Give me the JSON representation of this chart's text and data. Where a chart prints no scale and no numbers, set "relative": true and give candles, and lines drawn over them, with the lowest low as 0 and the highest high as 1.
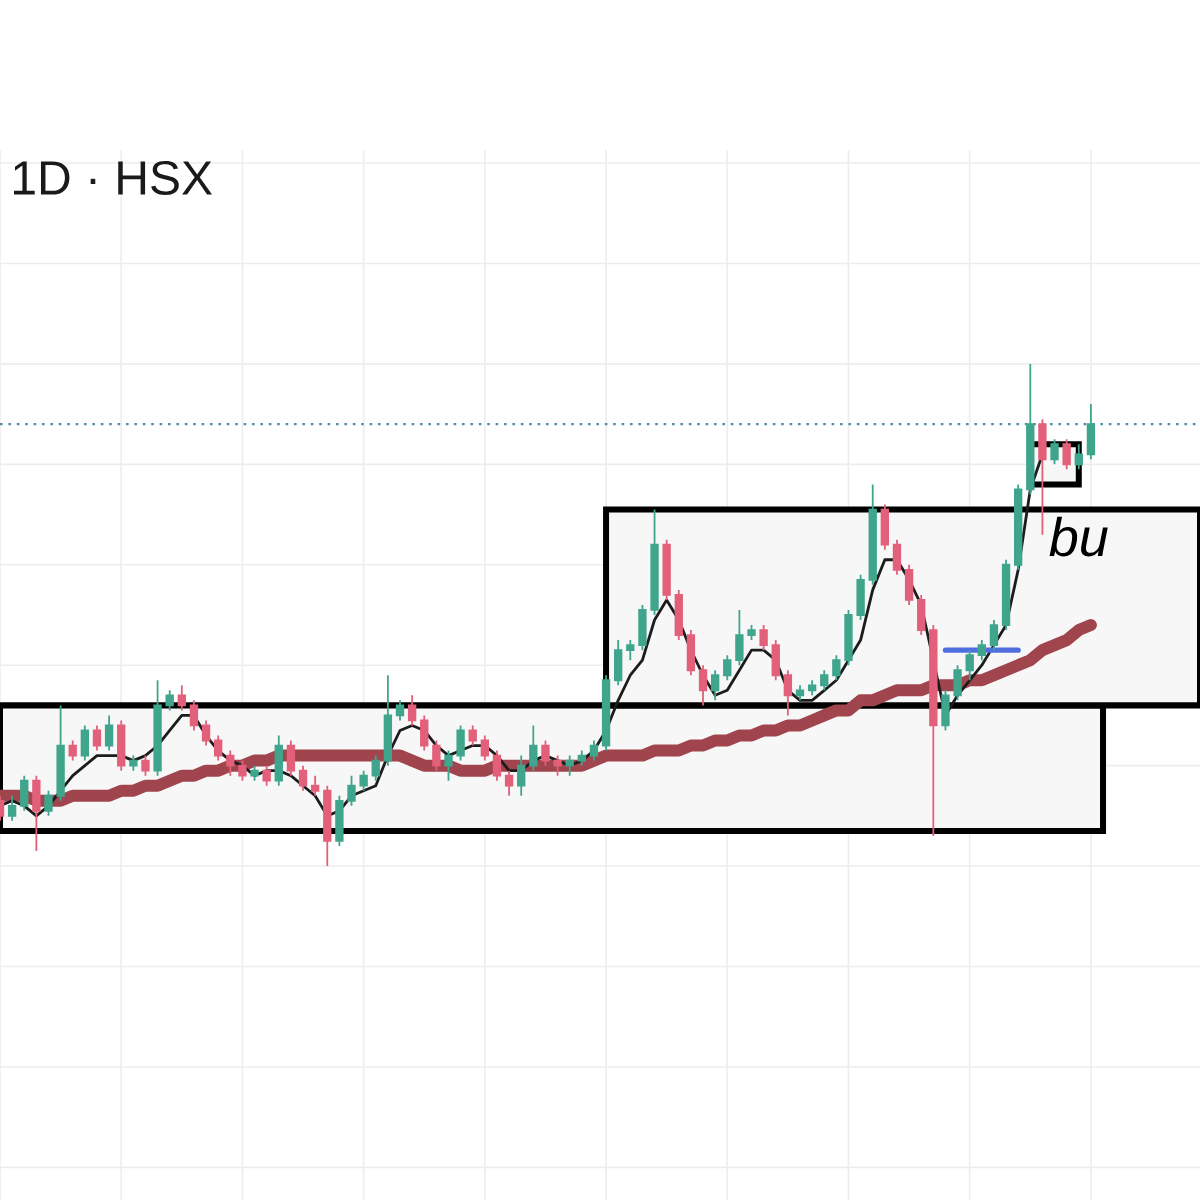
{
  "chart_data": {
    "type": "candlestick",
    "title": "1D · HSX",
    "relative": true,
    "categories": [
      null,
      null,
      null,
      null,
      null,
      null,
      null,
      null,
      null,
      null,
      null,
      null,
      null,
      null,
      null,
      null,
      null,
      null,
      null,
      null,
      null,
      null,
      null,
      null,
      null,
      null,
      null,
      null,
      null,
      null,
      null,
      null,
      null,
      null,
      null,
      null,
      null,
      null,
      null,
      null,
      null,
      null,
      null,
      null,
      null,
      null,
      null,
      null,
      null,
      null,
      null,
      null,
      null,
      null,
      null,
      null,
      null,
      null,
      null,
      null,
      null,
      null,
      null,
      null,
      null,
      null,
      null,
      null,
      null,
      null,
      null,
      null,
      null,
      null,
      null,
      null,
      null,
      null,
      null,
      null,
      null,
      null,
      null,
      null,
      null,
      null,
      null,
      null,
      null,
      null,
      null,
      null,
      null,
      null,
      null,
      null,
      null,
      null,
      null,
      null
    ],
    "ohlc": [
      [
        0.13,
        0.14,
        0.09,
        0.1
      ],
      [
        0.1,
        0.14,
        0.09,
        0.12
      ],
      [
        0.12,
        0.18,
        0.11,
        0.17
      ],
      [
        0.17,
        0.18,
        0.03,
        0.11
      ],
      [
        0.11,
        0.15,
        0.1,
        0.14
      ],
      [
        0.14,
        0.32,
        0.13,
        0.24
      ],
      [
        0.24,
        0.25,
        0.21,
        0.22
      ],
      [
        0.22,
        0.28,
        0.21,
        0.27
      ],
      [
        0.27,
        0.28,
        0.23,
        0.24
      ],
      [
        0.24,
        0.3,
        0.23,
        0.28
      ],
      [
        0.28,
        0.29,
        0.19,
        0.2
      ],
      [
        0.2,
        0.22,
        0.19,
        0.21
      ],
      [
        0.21,
        0.22,
        0.18,
        0.19
      ],
      [
        0.19,
        0.37,
        0.18,
        0.32
      ],
      [
        0.32,
        0.35,
        0.31,
        0.34
      ],
      [
        0.34,
        0.36,
        0.31,
        0.32
      ],
      [
        0.32,
        0.33,
        0.27,
        0.28
      ],
      [
        0.28,
        0.29,
        0.24,
        0.25
      ],
      [
        0.25,
        0.26,
        0.21,
        0.22
      ],
      [
        0.22,
        0.23,
        0.18,
        0.2
      ],
      [
        0.2,
        0.21,
        0.17,
        0.18
      ],
      [
        0.18,
        0.2,
        0.17,
        0.19
      ],
      [
        0.19,
        0.2,
        0.16,
        0.17
      ],
      [
        0.17,
        0.26,
        0.16,
        0.24
      ],
      [
        0.24,
        0.25,
        0.18,
        0.19
      ],
      [
        0.19,
        0.2,
        0.15,
        0.16
      ],
      [
        0.16,
        0.18,
        0.14,
        0.15
      ],
      [
        0.15,
        0.16,
        0.0,
        0.05
      ],
      [
        0.05,
        0.14,
        0.04,
        0.13
      ],
      [
        0.13,
        0.18,
        0.12,
        0.16
      ],
      [
        0.16,
        0.19,
        0.15,
        0.18
      ],
      [
        0.18,
        0.22,
        0.17,
        0.21
      ],
      [
        0.21,
        0.38,
        0.2,
        0.3
      ],
      [
        0.3,
        0.33,
        0.29,
        0.32
      ],
      [
        0.32,
        0.34,
        0.28,
        0.29
      ],
      [
        0.29,
        0.3,
        0.23,
        0.24
      ],
      [
        0.24,
        0.25,
        0.19,
        0.2
      ],
      [
        0.2,
        0.23,
        0.17,
        0.22
      ],
      [
        0.22,
        0.28,
        0.21,
        0.27
      ],
      [
        0.27,
        0.28,
        0.24,
        0.25
      ],
      [
        0.25,
        0.26,
        0.21,
        0.22
      ],
      [
        0.22,
        0.23,
        0.17,
        0.18
      ],
      [
        0.18,
        0.19,
        0.14,
        0.16
      ],
      [
        0.16,
        0.22,
        0.14,
        0.2
      ],
      [
        0.2,
        0.28,
        0.19,
        0.24
      ],
      [
        0.24,
        0.25,
        0.2,
        0.21
      ],
      [
        0.21,
        0.22,
        0.18,
        0.2
      ],
      [
        0.2,
        0.22,
        0.18,
        0.21
      ],
      [
        0.21,
        0.23,
        0.2,
        0.22
      ],
      [
        0.22,
        0.25,
        0.21,
        0.24
      ],
      [
        0.24,
        0.38,
        0.23,
        0.37
      ],
      [
        0.37,
        0.45,
        0.36,
        0.43
      ],
      [
        0.43,
        0.45,
        0.41,
        0.44
      ],
      [
        0.44,
        0.52,
        0.43,
        0.51
      ],
      [
        0.51,
        0.71,
        0.5,
        0.64
      ],
      [
        0.64,
        0.65,
        0.53,
        0.54
      ],
      [
        0.54,
        0.55,
        0.45,
        0.46
      ],
      [
        0.46,
        0.47,
        0.38,
        0.39
      ],
      [
        0.39,
        0.4,
        0.32,
        0.35
      ],
      [
        0.35,
        0.39,
        0.33,
        0.38
      ],
      [
        0.38,
        0.42,
        0.37,
        0.41
      ],
      [
        0.41,
        0.51,
        0.4,
        0.46
      ],
      [
        0.46,
        0.48,
        0.45,
        0.47
      ],
      [
        0.47,
        0.48,
        0.43,
        0.44
      ],
      [
        0.44,
        0.45,
        0.37,
        0.38
      ],
      [
        0.38,
        0.39,
        0.3,
        0.34
      ],
      [
        0.34,
        0.36,
        0.33,
        0.35
      ],
      [
        0.35,
        0.37,
        0.34,
        0.36
      ],
      [
        0.36,
        0.39,
        0.35,
        0.38
      ],
      [
        0.38,
        0.42,
        0.37,
        0.41
      ],
      [
        0.41,
        0.51,
        0.4,
        0.5
      ],
      [
        0.5,
        0.58,
        0.49,
        0.57
      ],
      [
        0.57,
        0.76,
        0.56,
        0.71
      ],
      [
        0.71,
        0.72,
        0.63,
        0.64
      ],
      [
        0.64,
        0.65,
        0.58,
        0.59
      ],
      [
        0.59,
        0.6,
        0.52,
        0.53
      ],
      [
        0.53,
        0.54,
        0.46,
        0.47
      ],
      [
        0.47,
        0.48,
        0.06,
        0.28
      ],
      [
        0.28,
        0.35,
        0.27,
        0.34
      ],
      [
        0.34,
        0.4,
        0.33,
        0.39
      ],
      [
        0.39,
        0.43,
        0.37,
        0.42
      ],
      [
        0.42,
        0.45,
        0.41,
        0.44
      ],
      [
        0.44,
        0.49,
        0.43,
        0.48
      ],
      [
        0.48,
        0.61,
        0.47,
        0.6
      ],
      [
        0.6,
        0.76,
        0.59,
        0.75
      ],
      [
        0.75,
        1.0,
        0.74,
        0.88
      ],
      [
        0.88,
        0.89,
        0.66,
        0.81
      ],
      [
        0.81,
        0.85,
        0.8,
        0.84
      ],
      [
        0.84,
        0.85,
        0.79,
        0.8
      ],
      [
        0.8,
        0.84,
        0.79,
        0.82
      ],
      [
        0.82,
        0.92,
        0.81,
        0.88
      ],
      null,
      null,
      null,
      null,
      null,
      null,
      null,
      null,
      null
    ],
    "colors": [
      "#e2607a",
      "#3fa58c",
      "#3fa58c",
      "#e2607a",
      "#3fa58c",
      "#3fa58c",
      "#e2607a",
      "#3fa58c",
      "#e2607a",
      "#3fa58c",
      "#e2607a",
      "#3fa58c",
      "#e2607a",
      "#3fa58c",
      "#3fa58c",
      "#e2607a",
      "#e2607a",
      "#e2607a",
      "#e2607a",
      "#e2607a",
      "#e2607a",
      "#3fa58c",
      "#e2607a",
      "#3fa58c",
      "#e2607a",
      "#e2607a",
      "#e2607a",
      "#e2607a",
      "#3fa58c",
      "#3fa58c",
      "#3fa58c",
      "#3fa58c",
      "#3fa58c",
      "#3fa58c",
      "#e2607a",
      "#e2607a",
      "#e2607a",
      "#3fa58c",
      "#3fa58c",
      "#e2607a",
      "#e2607a",
      "#e2607a",
      "#e2607a",
      "#3fa58c",
      "#3fa58c",
      "#e2607a",
      "#e2607a",
      "#3fa58c",
      "#3fa58c",
      "#3fa58c",
      "#3fa58c",
      "#3fa58c",
      "#3fa58c",
      "#3fa58c",
      "#3fa58c",
      "#e2607a",
      "#e2607a",
      "#e2607a",
      "#e2607a",
      "#3fa58c",
      "#3fa58c",
      "#3fa58c",
      "#3fa58c",
      "#e2607a",
      "#e2607a",
      "#e2607a",
      "#3fa58c",
      "#3fa58c",
      "#3fa58c",
      "#3fa58c",
      "#3fa58c",
      "#3fa58c",
      "#3fa58c",
      "#e2607a",
      "#e2607a",
      "#e2607a",
      "#e2607a",
      "#e2607a",
      "#3fa58c",
      "#3fa58c",
      "#3fa58c",
      "#3fa58c",
      "#3fa58c",
      "#3fa58c",
      "#3fa58c",
      "#3fa58c",
      "#e2607a",
      "#3fa58c",
      "#e2607a",
      "#3fa58c",
      "#3fa58c",
      null,
      null,
      null,
      null,
      null,
      null,
      null,
      null,
      null
    ],
    "series": [
      {
        "type": "line",
        "color": "#a0454d",
        "values": [
          0.14,
          0.14,
          0.14,
          0.13,
          0.13,
          0.13,
          0.14,
          0.14,
          0.14,
          0.14,
          0.15,
          0.15,
          0.16,
          0.16,
          0.17,
          0.18,
          0.18,
          0.19,
          0.19,
          0.2,
          0.2,
          0.21,
          0.21,
          0.22,
          0.22,
          0.22,
          0.22,
          0.22,
          0.22,
          0.22,
          0.22,
          0.22,
          0.22,
          0.22,
          0.21,
          0.2,
          0.2,
          0.2,
          0.19,
          0.19,
          0.19,
          0.2,
          0.2,
          0.2,
          0.2,
          0.2,
          0.2,
          0.2,
          0.2,
          0.21,
          0.22,
          0.22,
          0.22,
          0.22,
          0.23,
          0.23,
          0.23,
          0.24,
          0.24,
          0.25,
          0.25,
          0.26,
          0.26,
          0.27,
          0.27,
          0.28,
          0.28,
          0.29,
          0.3,
          0.31,
          0.31,
          0.33,
          0.33,
          0.34,
          0.35,
          0.35,
          0.35,
          0.36,
          0.36,
          0.36,
          0.37,
          0.37,
          0.38,
          0.39,
          0.4,
          0.41,
          0.43,
          0.44,
          0.45,
          0.47,
          0.48,
          null,
          null,
          null,
          null,
          null,
          null,
          null,
          null,
          null
        ]
      },
      {
        "type": "line",
        "color": "#1c1c1c",
        "values": [
          0.12,
          0.13,
          0.12,
          0.1,
          0.12,
          0.15,
          0.18,
          0.2,
          0.22,
          0.22,
          0.22,
          0.21,
          0.22,
          0.24,
          0.27,
          0.3,
          0.3,
          0.26,
          0.23,
          0.21,
          0.2,
          0.18,
          0.19,
          0.19,
          0.18,
          0.16,
          0.14,
          0.1,
          0.11,
          0.14,
          0.15,
          0.16,
          0.22,
          0.27,
          0.28,
          0.27,
          0.24,
          0.22,
          0.23,
          0.24,
          0.24,
          0.22,
          0.19,
          0.19,
          0.21,
          0.22,
          0.21,
          0.2,
          0.21,
          0.23,
          0.27,
          0.33,
          0.38,
          0.41,
          0.49,
          0.53,
          0.49,
          0.43,
          0.38,
          0.34,
          0.35,
          0.39,
          0.43,
          0.43,
          0.41,
          0.35,
          0.33,
          0.33,
          0.35,
          0.37,
          0.41,
          0.45,
          0.55,
          0.61,
          0.61,
          0.57,
          0.52,
          null,
          0.3,
          0.34,
          0.37,
          0.4,
          0.44,
          0.48,
          0.59,
          0.75,
          0.82,
          null,
          null,
          null,
          null,
          null,
          null,
          null,
          null,
          null,
          null,
          null,
          null,
          null
        ]
      },
      {
        "type": "line",
        "color": "#000000",
        "values": [
          null,
          null,
          null,
          null,
          null,
          null,
          null,
          null,
          null,
          null,
          null,
          null,
          null,
          null,
          null,
          null,
          null,
          null,
          null,
          null,
          null,
          null,
          null,
          null,
          null,
          null,
          null,
          null,
          null,
          null,
          null,
          null,
          null,
          null,
          null,
          null,
          null,
          null,
          null,
          null,
          null,
          null,
          null,
          null,
          null,
          null,
          null,
          null,
          null,
          null,
          null,
          null,
          null,
          null,
          null,
          null,
          null,
          null,
          null,
          null,
          null,
          null,
          null,
          null,
          null,
          null,
          null,
          null,
          null,
          null,
          null,
          null,
          null,
          null,
          null,
          null,
          null,
          null,
          null,
          null,
          null,
          null,
          null,
          null,
          null,
          null,
          null,
          null,
          null,
          null,
          null,
          null,
          null,
          null,
          null,
          null,
          null,
          null,
          null,
          null
        ],
        "lower": [
          0.07,
          0.07,
          0.07,
          0.07,
          0.07,
          0.07,
          0.07,
          0.07,
          0.07,
          0.07,
          0.07,
          0.07,
          0.07,
          0.07,
          0.07,
          0.07,
          0.07,
          0.07,
          0.07,
          0.07,
          0.07,
          0.07,
          0.07,
          0.07,
          0.07,
          0.07,
          0.07,
          0.07,
          0.07,
          0.07,
          0.07,
          0.07,
          0.07,
          0.07,
          0.07,
          0.07,
          0.07,
          0.07,
          0.07,
          0.07,
          0.07,
          0.07,
          0.07,
          0.07,
          0.07,
          0.07,
          0.07,
          0.07,
          0.07,
          0.07,
          0.07,
          0.07,
          0.07,
          0.07,
          0.07,
          0.07,
          0.07,
          0.07,
          0.07,
          0.07,
          0.07,
          0.07,
          0.07,
          0.07,
          0.07,
          0.07,
          0.07,
          0.07,
          0.07,
          0.07,
          0.07,
          0.07,
          0.07,
          0.07,
          0.07,
          0.07,
          0.07,
          0.07,
          0.07,
          0.07,
          0.07,
          0.07,
          0.07,
          0.07,
          0.07,
          0.07,
          0.07,
          0.07,
          0.07,
          0.07,
          0.07,
          0.07,
          null,
          null,
          null,
          null,
          null,
          null,
          null,
          null
        ],
        "upper": [
          0.32,
          0.32,
          0.32,
          0.32,
          0.32,
          0.32,
          0.32,
          0.32,
          0.32,
          0.32,
          0.32,
          0.32,
          0.32,
          0.32,
          0.32,
          0.32,
          0.32,
          0.32,
          0.32,
          0.32,
          0.32,
          0.32,
          0.32,
          0.32,
          0.32,
          0.32,
          0.32,
          0.32,
          0.32,
          0.32,
          0.32,
          0.32,
          0.32,
          0.32,
          0.32,
          0.32,
          0.32,
          0.32,
          0.32,
          0.32,
          0.32,
          0.32,
          0.32,
          0.32,
          0.32,
          0.32,
          0.32,
          0.32,
          0.32,
          0.32,
          0.32,
          0.32,
          0.32,
          0.32,
          0.32,
          0.32,
          0.32,
          0.32,
          0.32,
          0.32,
          0.32,
          0.32,
          0.32,
          0.32,
          0.32,
          0.32,
          0.32,
          0.32,
          0.32,
          0.32,
          0.32,
          0.32,
          0.32,
          0.32,
          0.32,
          0.32,
          0.32,
          0.32,
          0.32,
          0.32,
          0.32,
          0.32,
          0.32,
          0.32,
          0.32,
          0.32,
          0.32,
          0.32,
          0.32,
          0.32,
          0.32,
          0.32,
          null,
          null,
          null,
          null,
          null,
          null,
          null,
          null
        ]
      },
      {
        "type": "line",
        "color": "#000000",
        "values": [
          null,
          null,
          null,
          null,
          null,
          null,
          null,
          null,
          null,
          null,
          null,
          null,
          null,
          null,
          null,
          null,
          null,
          null,
          null,
          null,
          null,
          null,
          null,
          null,
          null,
          null,
          null,
          null,
          null,
          null,
          null,
          null,
          null,
          null,
          null,
          null,
          null,
          null,
          null,
          null,
          null,
          null,
          null,
          null,
          null,
          null,
          null,
          null,
          null,
          null,
          null,
          null,
          null,
          null,
          null,
          null,
          null,
          null,
          null,
          null,
          null,
          null,
          null,
          null,
          null,
          null,
          null,
          null,
          null,
          null,
          null,
          null,
          null,
          null,
          null,
          null,
          null,
          null,
          null,
          null,
          null,
          null,
          null,
          null,
          null,
          null,
          null,
          null,
          null,
          null,
          null,
          null,
          null,
          null,
          null,
          null,
          null,
          null,
          null,
          null
        ],
        "lower": [
          null,
          null,
          null,
          null,
          null,
          null,
          null,
          null,
          null,
          null,
          null,
          null,
          null,
          null,
          null,
          null,
          null,
          null,
          null,
          null,
          null,
          null,
          null,
          null,
          null,
          null,
          null,
          null,
          null,
          null,
          null,
          null,
          null,
          null,
          null,
          null,
          null,
          null,
          null,
          null,
          null,
          null,
          null,
          null,
          null,
          null,
          null,
          null,
          null,
          null,
          0.32,
          0.32,
          0.32,
          0.32,
          0.32,
          0.32,
          0.32,
          0.32,
          0.32,
          0.32,
          0.32,
          0.32,
          0.32,
          0.32,
          0.32,
          0.32,
          0.32,
          0.32,
          0.32,
          0.32,
          0.32,
          0.32,
          0.32,
          0.32,
          0.32,
          0.32,
          0.32,
          0.32,
          0.32,
          0.32,
          0.32,
          0.32,
          0.32,
          0.32,
          0.32,
          0.32,
          0.32,
          0.32,
          0.32,
          0.32,
          0.32,
          0.32,
          0.32,
          0.32,
          0.32,
          0.32,
          0.32,
          0.32,
          0.32,
          0.32
        ],
        "upper": [
          null,
          null,
          null,
          null,
          null,
          null,
          null,
          null,
          null,
          null,
          null,
          null,
          null,
          null,
          null,
          null,
          null,
          null,
          null,
          null,
          null,
          null,
          null,
          null,
          null,
          null,
          null,
          null,
          null,
          null,
          null,
          null,
          null,
          null,
          null,
          null,
          null,
          null,
          null,
          null,
          null,
          null,
          null,
          null,
          null,
          null,
          null,
          null,
          null,
          null,
          0.71,
          0.71,
          0.71,
          0.71,
          0.71,
          0.71,
          0.71,
          0.71,
          0.71,
          0.71,
          0.71,
          0.71,
          0.71,
          0.71,
          0.71,
          0.71,
          0.71,
          0.71,
          0.71,
          0.71,
          0.71,
          0.71,
          0.71,
          0.71,
          0.71,
          0.71,
          0.71,
          0.71,
          0.71,
          0.71,
          0.71,
          0.71,
          0.71,
          0.71,
          0.71,
          0.71,
          0.71,
          0.71,
          0.71,
          0.71,
          0.71,
          0.71,
          0.71,
          0.71,
          0.71,
          0.71,
          0.71,
          0.71,
          0.71,
          0.71
        ]
      },
      {
        "type": "line",
        "color": "#000000",
        "name": "bu",
        "values": [
          null,
          null,
          null,
          null,
          null,
          null,
          null,
          null,
          null,
          null,
          null,
          null,
          null,
          null,
          null,
          null,
          null,
          null,
          null,
          null,
          null,
          null,
          null,
          null,
          null,
          null,
          null,
          null,
          null,
          null,
          null,
          null,
          null,
          null,
          null,
          null,
          null,
          null,
          null,
          null,
          null,
          null,
          null,
          null,
          null,
          null,
          null,
          null,
          null,
          null,
          null,
          null,
          null,
          null,
          null,
          null,
          null,
          null,
          null,
          null,
          null,
          null,
          null,
          null,
          null,
          null,
          null,
          null,
          null,
          null,
          null,
          null,
          null,
          null,
          null,
          null,
          null,
          null,
          null,
          null,
          null,
          null,
          null,
          null,
          null,
          null,
          null,
          null,
          null,
          null,
          null,
          null,
          null,
          null,
          null,
          null,
          null,
          null,
          null,
          null
        ],
        "lower": [
          null,
          null,
          null,
          null,
          null,
          null,
          null,
          null,
          null,
          null,
          null,
          null,
          null,
          null,
          null,
          null,
          null,
          null,
          null,
          null,
          null,
          null,
          null,
          null,
          null,
          null,
          null,
          null,
          null,
          null,
          null,
          null,
          null,
          null,
          null,
          null,
          null,
          null,
          null,
          null,
          null,
          null,
          null,
          null,
          null,
          null,
          null,
          null,
          null,
          null,
          null,
          null,
          null,
          null,
          null,
          null,
          null,
          null,
          null,
          null,
          null,
          null,
          null,
          null,
          null,
          null,
          null,
          null,
          null,
          null,
          null,
          null,
          null,
          null,
          null,
          null,
          null,
          null,
          null,
          null,
          null,
          null,
          null,
          null,
          null,
          0.76,
          0.76,
          0.76,
          0.76,
          0.76,
          null,
          null,
          null,
          null,
          null,
          null,
          null,
          null,
          null,
          null
        ],
        "upper": [
          null,
          null,
          null,
          null,
          null,
          null,
          null,
          null,
          null,
          null,
          null,
          null,
          null,
          null,
          null,
          null,
          null,
          null,
          null,
          null,
          null,
          null,
          null,
          null,
          null,
          null,
          null,
          null,
          null,
          null,
          null,
          null,
          null,
          null,
          null,
          null,
          null,
          null,
          null,
          null,
          null,
          null,
          null,
          null,
          null,
          null,
          null,
          null,
          null,
          null,
          null,
          null,
          null,
          null,
          null,
          null,
          null,
          null,
          null,
          null,
          null,
          null,
          null,
          null,
          null,
          null,
          null,
          null,
          null,
          null,
          null,
          null,
          null,
          null,
          null,
          null,
          null,
          null,
          null,
          null,
          null,
          null,
          null,
          null,
          null,
          0.84,
          0.84,
          0.84,
          0.84,
          0.84,
          null,
          null,
          null,
          null,
          null,
          null,
          null,
          null,
          null,
          null
        ]
      },
      {
        "type": "line",
        "color": "#4f6fe0",
        "values": [
          null,
          null,
          null,
          null,
          null,
          null,
          null,
          null,
          null,
          null,
          null,
          null,
          null,
          null,
          null,
          null,
          null,
          null,
          null,
          null,
          null,
          null,
          null,
          null,
          null,
          null,
          null,
          null,
          null,
          null,
          null,
          null,
          null,
          null,
          null,
          null,
          null,
          null,
          null,
          null,
          null,
          null,
          null,
          null,
          null,
          null,
          null,
          null,
          null,
          null,
          null,
          null,
          null,
          null,
          null,
          null,
          null,
          null,
          null,
          null,
          null,
          null,
          null,
          null,
          null,
          null,
          null,
          null,
          null,
          null,
          null,
          null,
          null,
          null,
          null,
          null,
          null,
          null,
          0.43,
          0.43,
          0.43,
          0.43,
          0.43,
          0.43,
          0.43,
          null,
          null,
          null,
          null,
          null,
          null,
          null,
          null,
          null,
          null,
          null,
          null,
          null,
          null,
          null
        ]
      }
    ],
    "ref_lines": [
      {
        "axis": "y",
        "value": 0.88,
        "line_style": "dotted",
        "color": "#4d8fa8"
      }
    ],
    "grid": true,
    "marker": "none",
    "line_style": "solid",
    "legend": false
  }
}
